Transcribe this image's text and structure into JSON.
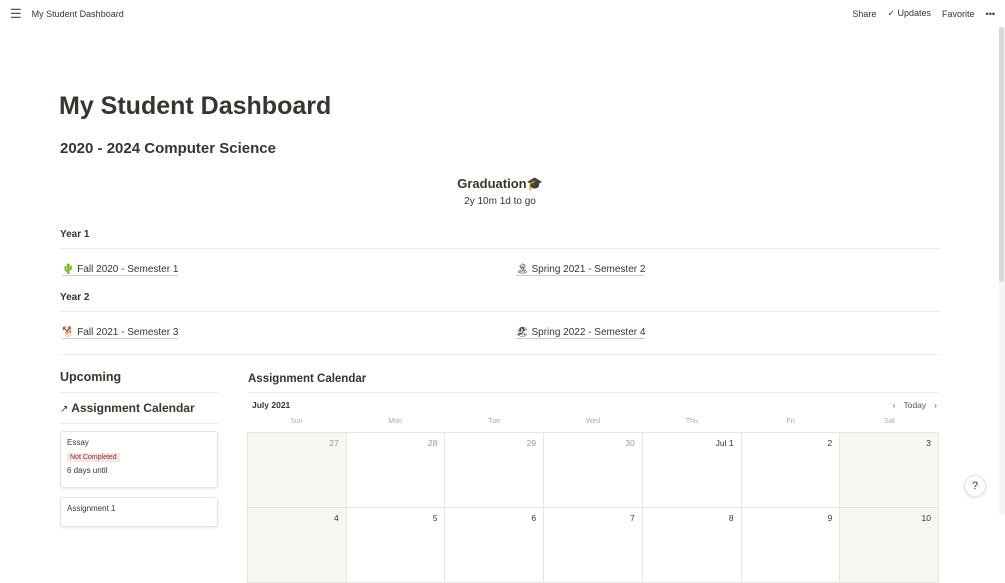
{
  "topbar": {
    "menu_icon": "hamburger-icon",
    "title": "My Student Dashboard",
    "share": "Share",
    "updates": "Updates",
    "favorite": "Favorite",
    "more": "•••"
  },
  "page": {
    "title": "My Student Dashboard",
    "subtitle": "2020 - 2024 Computer Science"
  },
  "graduation": {
    "title": "Graduation🎓",
    "countdown": "2y 10m 1d to go"
  },
  "years": [
    {
      "label": "Year 1",
      "semesters": [
        {
          "icon": "🌵",
          "label": "Fall 2020 - Semester 1"
        },
        {
          "icon": "🏝",
          "label": "Spring 2021 - Semester 2"
        }
      ]
    },
    {
      "label": "Year 2",
      "semesters": [
        {
          "icon": "🐕",
          "label": "Fall 2021 - Semester 3"
        },
        {
          "icon": "🏖",
          "label": "Spring 2022 - Semester 4"
        }
      ]
    }
  ],
  "upcoming": {
    "title": "Upcoming",
    "link": "Assignment Calendar",
    "arrow": "↗",
    "cards": [
      {
        "title": "Essay",
        "status": "Not Completed",
        "due": "6 days until"
      },
      {
        "title": "Assignment 1"
      }
    ]
  },
  "calendar": {
    "title": "Assignment Calendar",
    "month": "July 2021",
    "today": "Today",
    "prev": "‹",
    "next": "›",
    "days": [
      "Sun",
      "Mon",
      "Tue",
      "Wed",
      "Thu",
      "Fri",
      "Sat"
    ],
    "week1": [
      "27",
      "28",
      "29",
      "30",
      "Jul 1",
      "2",
      "3"
    ],
    "week2": [
      "4",
      "5",
      "6",
      "7",
      "8",
      "9",
      "10"
    ]
  },
  "help": "?"
}
